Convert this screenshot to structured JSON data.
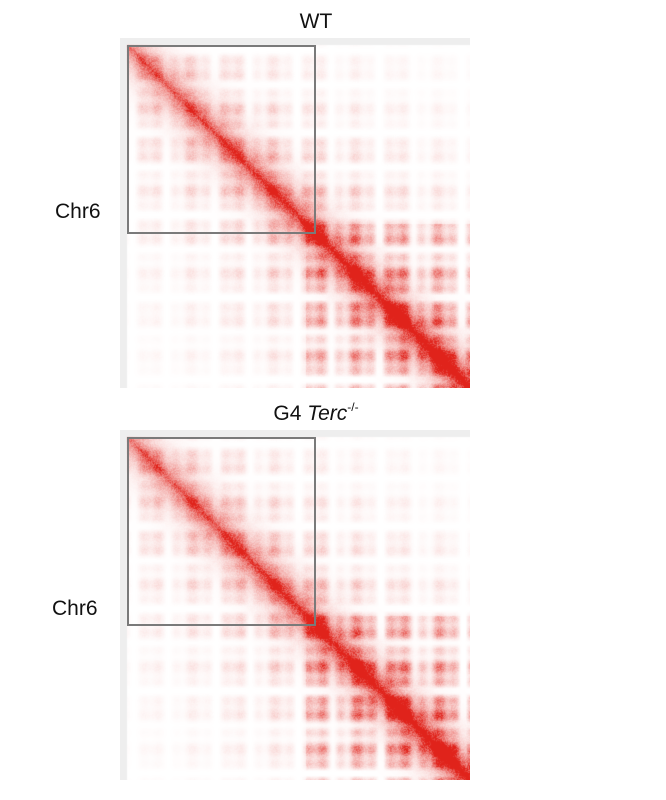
{
  "chart_data": [
    {
      "type": "heatmap",
      "title": "WT",
      "ylabel": "Chr6",
      "xlabel": "",
      "colorscale": {
        "low": "#ffffff",
        "high": "#e0231b"
      },
      "diagonal": "strong contact enrichment along main diagonal (lower-right strongest)",
      "highlight_box": {
        "extent_fraction_of_chromosome": 0.54,
        "color": "#7a7a7a"
      }
    },
    {
      "type": "heatmap",
      "title_prefix": "G4 ",
      "title_italic": "Terc",
      "title_sup": "-/-",
      "ylabel": "Chr6",
      "xlabel": "",
      "colorscale": {
        "low": "#ffffff",
        "high": "#e0231b"
      },
      "diagonal": "strong contact enrichment along main diagonal (lower-right strongest)",
      "highlight_box": {
        "extent_fraction_of_chromosome": 0.54,
        "color": "#7a7a7a"
      }
    }
  ]
}
